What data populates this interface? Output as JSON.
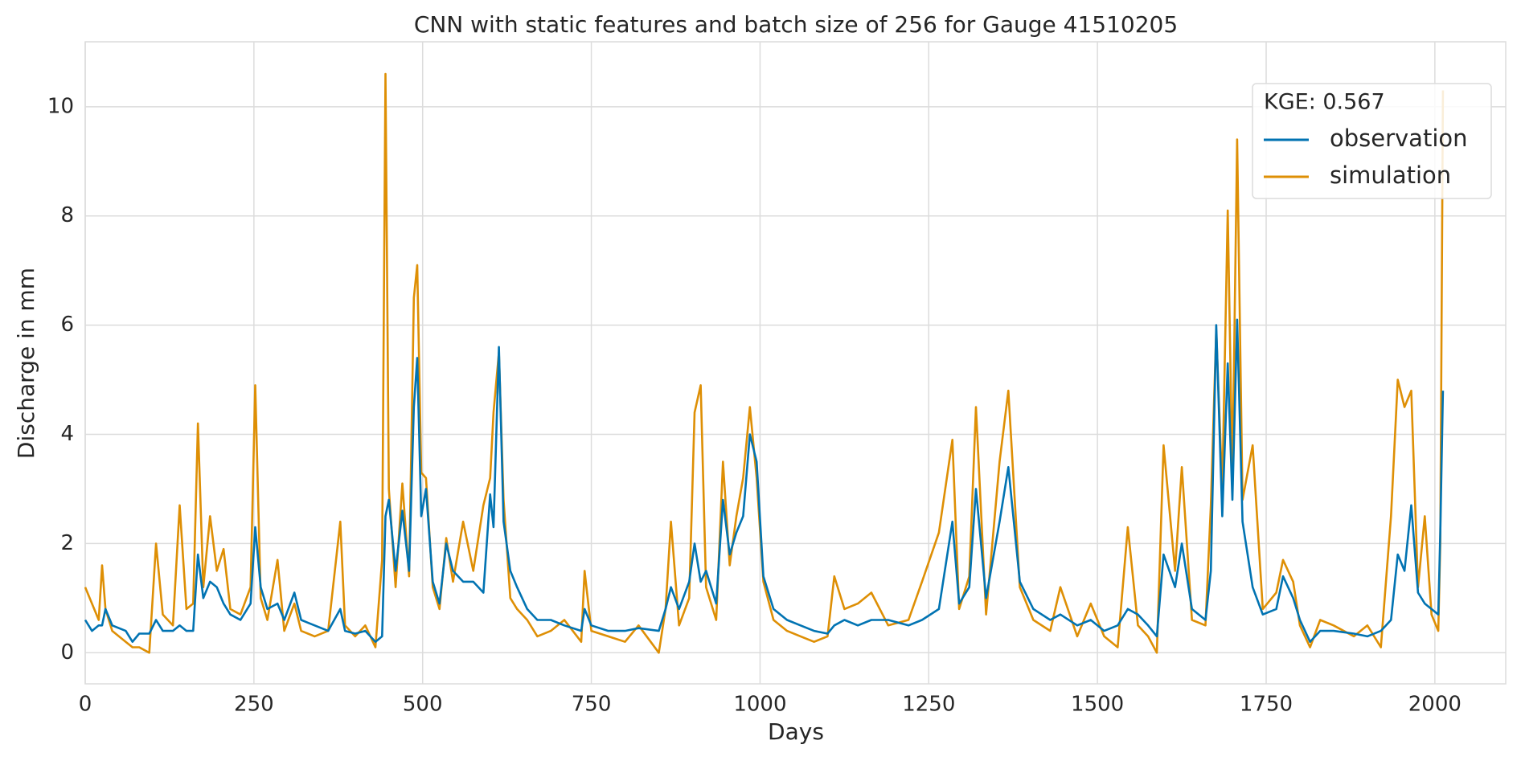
{
  "chart_data": {
    "type": "line",
    "title": "CNN with static features and batch size of 256 for Gauge 41510205",
    "xlabel": "Days",
    "ylabel": "Discharge in mm",
    "legend_title": "KGE: 0.567",
    "legend": "upper right",
    "grid": true,
    "xlim": [
      0,
      2105
    ],
    "xticks": [
      0,
      250,
      500,
      750,
      1000,
      1250,
      1500,
      1750,
      2000
    ],
    "ylim": [
      -0.57,
      11.19
    ],
    "yticks": [
      0,
      2,
      4,
      6,
      8,
      10
    ],
    "x": [
      0,
      10,
      20,
      25,
      30,
      40,
      60,
      70,
      80,
      95,
      105,
      115,
      130,
      140,
      150,
      160,
      167,
      175,
      185,
      195,
      205,
      215,
      230,
      245,
      252,
      260,
      270,
      285,
      295,
      310,
      320,
      340,
      360,
      378,
      385,
      400,
      415,
      430,
      440,
      445,
      450,
      460,
      470,
      480,
      487,
      492,
      498,
      505,
      515,
      525,
      535,
      545,
      560,
      575,
      590,
      600,
      605,
      613,
      620,
      630,
      640,
      655,
      670,
      690,
      710,
      735,
      740,
      750,
      775,
      800,
      820,
      850,
      860,
      868,
      880,
      895,
      903,
      912,
      920,
      935,
      945,
      955,
      965,
      975,
      985,
      995,
      1005,
      1020,
      1040,
      1060,
      1080,
      1100,
      1110,
      1125,
      1145,
      1165,
      1190,
      1220,
      1240,
      1265,
      1285,
      1295,
      1310,
      1320,
      1335,
      1355,
      1368,
      1385,
      1405,
      1430,
      1445,
      1470,
      1490,
      1510,
      1530,
      1545,
      1560,
      1575,
      1588,
      1598,
      1615,
      1625,
      1640,
      1660,
      1668,
      1676,
      1685,
      1693,
      1700,
      1707,
      1715,
      1730,
      1745,
      1765,
      1775,
      1790,
      1800,
      1815,
      1830,
      1850,
      1880,
      1900,
      1920,
      1935,
      1945,
      1955,
      1965,
      1975,
      1985,
      1995,
      2005,
      2008,
      2012
    ],
    "series": [
      {
        "name": "observation",
        "color": "#0173b2",
        "values": [
          0.6,
          0.4,
          0.5,
          0.5,
          0.8,
          0.5,
          0.4,
          0.2,
          0.35,
          0.35,
          0.6,
          0.4,
          0.4,
          0.5,
          0.4,
          0.4,
          1.8,
          1.0,
          1.3,
          1.2,
          0.9,
          0.7,
          0.6,
          0.9,
          2.3,
          1.2,
          0.8,
          0.9,
          0.6,
          1.1,
          0.6,
          0.5,
          0.4,
          0.8,
          0.4,
          0.35,
          0.4,
          0.2,
          0.3,
          2.5,
          2.8,
          1.5,
          2.6,
          1.5,
          4.5,
          5.4,
          2.5,
          3.0,
          1.3,
          0.9,
          2.0,
          1.5,
          1.3,
          1.3,
          1.1,
          2.9,
          2.3,
          5.6,
          2.4,
          1.5,
          1.2,
          0.8,
          0.6,
          0.6,
          0.5,
          0.4,
          0.8,
          0.5,
          0.4,
          0.4,
          0.45,
          0.4,
          0.8,
          1.2,
          0.8,
          1.3,
          2.0,
          1.3,
          1.5,
          0.9,
          2.8,
          1.8,
          2.2,
          2.5,
          4.0,
          3.5,
          1.4,
          0.8,
          0.6,
          0.5,
          0.4,
          0.35,
          0.5,
          0.6,
          0.5,
          0.6,
          0.6,
          0.5,
          0.6,
          0.8,
          2.4,
          0.9,
          1.2,
          3.0,
          1.0,
          2.4,
          3.4,
          1.3,
          0.8,
          0.6,
          0.7,
          0.5,
          0.6,
          0.4,
          0.5,
          0.8,
          0.7,
          0.5,
          0.3,
          1.8,
          1.2,
          2.0,
          0.8,
          0.6,
          1.5,
          6.0,
          2.5,
          5.3,
          2.8,
          6.1,
          2.4,
          1.2,
          0.7,
          0.8,
          1.4,
          1.0,
          0.6,
          0.2,
          0.4,
          0.4,
          0.35,
          0.3,
          0.4,
          0.6,
          1.8,
          1.5,
          2.7,
          1.1,
          0.9,
          0.8,
          0.7,
          2.2,
          4.8
        ]
      },
      {
        "name": "simulation",
        "color": "#de8f05",
        "values": [
          1.2,
          0.9,
          0.6,
          1.6,
          0.8,
          0.4,
          0.2,
          0.1,
          0.1,
          0.0,
          2.0,
          0.7,
          0.5,
          2.7,
          0.8,
          0.9,
          4.2,
          1.2,
          2.5,
          1.5,
          1.9,
          0.8,
          0.7,
          1.2,
          4.9,
          1.0,
          0.6,
          1.7,
          0.4,
          0.9,
          0.4,
          0.3,
          0.4,
          2.4,
          0.5,
          0.3,
          0.5,
          0.1,
          1.7,
          10.6,
          3.0,
          1.2,
          3.1,
          1.4,
          6.5,
          7.1,
          3.3,
          3.2,
          1.2,
          0.8,
          2.1,
          1.3,
          2.4,
          1.5,
          2.7,
          3.2,
          4.4,
          5.5,
          2.8,
          1.0,
          0.8,
          0.6,
          0.3,
          0.4,
          0.6,
          0.2,
          1.5,
          0.4,
          0.3,
          0.2,
          0.5,
          0.0,
          0.8,
          2.4,
          0.5,
          1.0,
          4.4,
          4.9,
          1.2,
          0.6,
          3.5,
          1.6,
          2.5,
          3.2,
          4.5,
          3.2,
          1.3,
          0.6,
          0.4,
          0.3,
          0.2,
          0.3,
          1.4,
          0.8,
          0.9,
          1.1,
          0.5,
          0.6,
          1.3,
          2.2,
          3.9,
          0.8,
          1.4,
          4.5,
          0.7,
          3.5,
          4.8,
          1.2,
          0.6,
          0.4,
          1.2,
          0.3,
          0.9,
          0.3,
          0.1,
          2.3,
          0.5,
          0.3,
          0.0,
          3.8,
          1.5,
          3.4,
          0.6,
          0.5,
          2.7,
          5.9,
          3.0,
          8.1,
          3.2,
          9.4,
          2.8,
          3.8,
          0.8,
          1.1,
          1.7,
          1.3,
          0.5,
          0.1,
          0.6,
          0.5,
          0.3,
          0.5,
          0.1,
          2.5,
          5.0,
          4.5,
          4.8,
          1.2,
          2.5,
          0.7,
          0.4,
          2.0,
          10.3
        ]
      }
    ]
  }
}
